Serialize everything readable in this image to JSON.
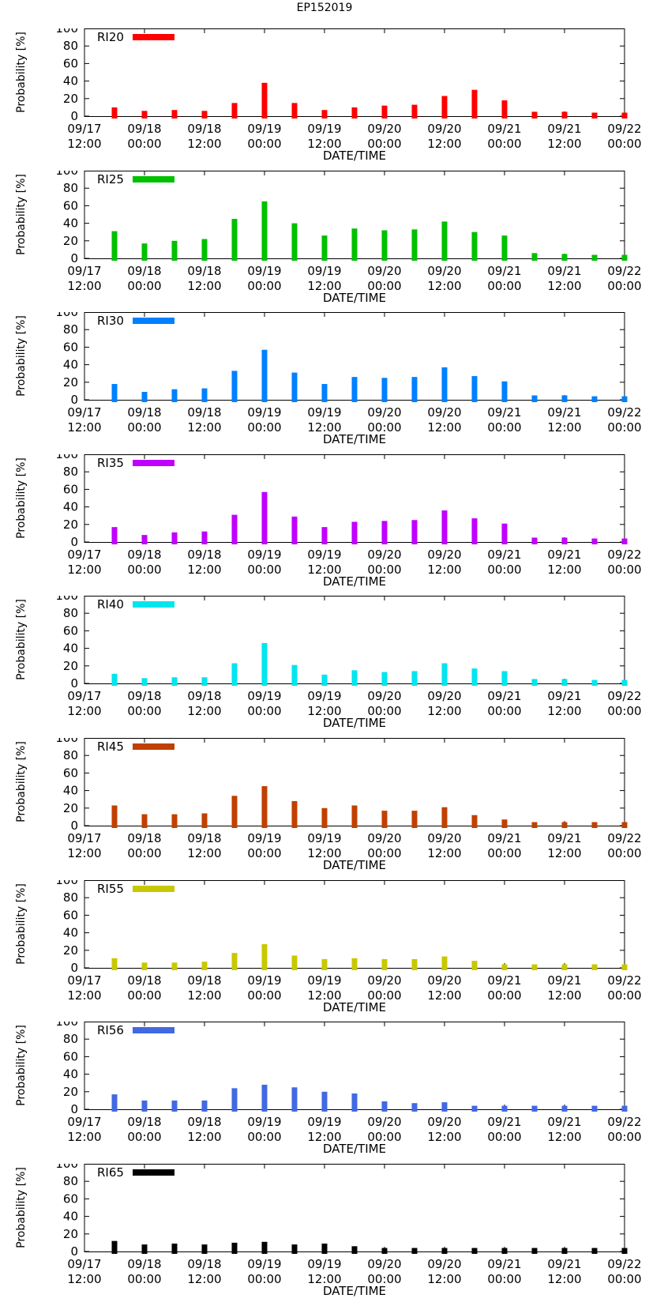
{
  "figure_title": "EP152019",
  "chart_data": [
    {
      "type": "bar",
      "title": "RI20",
      "legend": "RI20",
      "color": "#ff0000",
      "xlabel": "DATE/TIME",
      "ylabel": "Probability [%]",
      "ylim": [
        0,
        100
      ],
      "yticks": [
        "0",
        "20",
        "40",
        "60",
        "80",
        "100"
      ],
      "x_tick_labels": [
        [
          "09/17",
          "12:00"
        ],
        [
          "09/18",
          "00:00"
        ],
        [
          "09/18",
          "12:00"
        ],
        [
          "09/19",
          "00:00"
        ],
        [
          "09/19",
          "12:00"
        ],
        [
          "09/20",
          "00:00"
        ],
        [
          "09/20",
          "12:00"
        ],
        [
          "09/21",
          "00:00"
        ],
        [
          "09/21",
          "12:00"
        ],
        [
          "09/22",
          "00:00"
        ]
      ],
      "values": [
        10,
        6,
        7,
        6,
        15,
        38,
        15,
        7,
        10,
        12,
        13,
        23,
        30,
        18,
        5,
        5,
        4,
        4
      ]
    },
    {
      "type": "bar",
      "title": "RI25",
      "legend": "RI25",
      "color": "#00c000",
      "xlabel": "DATE/TIME",
      "ylabel": "Probability [%]",
      "ylim": [
        0,
        100
      ],
      "yticks": [
        "0",
        "20",
        "40",
        "60",
        "80",
        "100"
      ],
      "x_tick_labels": [
        [
          "09/17",
          "12:00"
        ],
        [
          "09/18",
          "00:00"
        ],
        [
          "09/18",
          "12:00"
        ],
        [
          "09/19",
          "00:00"
        ],
        [
          "09/19",
          "12:00"
        ],
        [
          "09/20",
          "00:00"
        ],
        [
          "09/20",
          "12:00"
        ],
        [
          "09/21",
          "00:00"
        ],
        [
          "09/21",
          "12:00"
        ],
        [
          "09/22",
          "00:00"
        ]
      ],
      "values": [
        31,
        17,
        20,
        22,
        45,
        65,
        40,
        26,
        34,
        32,
        33,
        42,
        30,
        26,
        6,
        5,
        4,
        4
      ]
    },
    {
      "type": "bar",
      "title": "RI30",
      "legend": "RI30",
      "color": "#0080ff",
      "xlabel": "DATE/TIME",
      "ylabel": "Probability [%]",
      "ylim": [
        0,
        100
      ],
      "yticks": [
        "0",
        "20",
        "40",
        "60",
        "80",
        "100"
      ],
      "x_tick_labels": [
        [
          "09/17",
          "12:00"
        ],
        [
          "09/18",
          "00:00"
        ],
        [
          "09/18",
          "12:00"
        ],
        [
          "09/19",
          "00:00"
        ],
        [
          "09/19",
          "12:00"
        ],
        [
          "09/20",
          "00:00"
        ],
        [
          "09/20",
          "12:00"
        ],
        [
          "09/21",
          "00:00"
        ],
        [
          "09/21",
          "12:00"
        ],
        [
          "09/22",
          "00:00"
        ]
      ],
      "values": [
        18,
        9,
        12,
        13,
        33,
        57,
        31,
        18,
        26,
        25,
        26,
        37,
        27,
        21,
        5,
        5,
        4,
        4
      ]
    },
    {
      "type": "bar",
      "title": "RI35",
      "legend": "RI35",
      "color": "#c000ff",
      "xlabel": "DATE/TIME",
      "ylabel": "Probability [%]",
      "ylim": [
        0,
        100
      ],
      "yticks": [
        "0",
        "20",
        "40",
        "60",
        "80",
        "100"
      ],
      "x_tick_labels": [
        [
          "09/17",
          "12:00"
        ],
        [
          "09/18",
          "00:00"
        ],
        [
          "09/18",
          "12:00"
        ],
        [
          "09/19",
          "00:00"
        ],
        [
          "09/19",
          "12:00"
        ],
        [
          "09/20",
          "00:00"
        ],
        [
          "09/20",
          "12:00"
        ],
        [
          "09/21",
          "00:00"
        ],
        [
          "09/21",
          "12:00"
        ],
        [
          "09/22",
          "00:00"
        ]
      ],
      "values": [
        17,
        8,
        11,
        12,
        31,
        57,
        29,
        17,
        23,
        24,
        25,
        36,
        27,
        21,
        5,
        5,
        4,
        4
      ]
    },
    {
      "type": "bar",
      "title": "RI40",
      "legend": "RI40",
      "color": "#00e5ee",
      "xlabel": "DATE/TIME",
      "ylabel": "Probability [%]",
      "ylim": [
        0,
        100
      ],
      "yticks": [
        "0",
        "20",
        "40",
        "60",
        "80",
        "100"
      ],
      "x_tick_labels": [
        [
          "09/17",
          "12:00"
        ],
        [
          "09/18",
          "00:00"
        ],
        [
          "09/18",
          "12:00"
        ],
        [
          "09/19",
          "00:00"
        ],
        [
          "09/19",
          "12:00"
        ],
        [
          "09/20",
          "00:00"
        ],
        [
          "09/20",
          "12:00"
        ],
        [
          "09/21",
          "00:00"
        ],
        [
          "09/21",
          "12:00"
        ],
        [
          "09/22",
          "00:00"
        ]
      ],
      "values": [
        11,
        6,
        7,
        7,
        23,
        46,
        21,
        10,
        15,
        13,
        14,
        23,
        17,
        14,
        5,
        5,
        4,
        4
      ]
    },
    {
      "type": "bar",
      "title": "RI45",
      "legend": "RI45",
      "color": "#c04000",
      "xlabel": "DATE/TIME",
      "ylabel": "Probability [%]",
      "ylim": [
        0,
        100
      ],
      "yticks": [
        "0",
        "20",
        "40",
        "60",
        "80",
        "100"
      ],
      "x_tick_labels": [
        [
          "09/17",
          "12:00"
        ],
        [
          "09/18",
          "00:00"
        ],
        [
          "09/18",
          "12:00"
        ],
        [
          "09/19",
          "00:00"
        ],
        [
          "09/19",
          "12:00"
        ],
        [
          "09/20",
          "00:00"
        ],
        [
          "09/20",
          "12:00"
        ],
        [
          "09/21",
          "00:00"
        ],
        [
          "09/21",
          "12:00"
        ],
        [
          "09/22",
          "00:00"
        ]
      ],
      "values": [
        23,
        13,
        13,
        14,
        34,
        45,
        28,
        20,
        23,
        17,
        17,
        21,
        12,
        7,
        4,
        4,
        4,
        4
      ]
    },
    {
      "type": "bar",
      "title": "RI55",
      "legend": "RI55",
      "color": "#c8c800",
      "xlabel": "DATE/TIME",
      "ylabel": "Probability [%]",
      "ylim": [
        0,
        100
      ],
      "yticks": [
        "0",
        "20",
        "40",
        "60",
        "80",
        "100"
      ],
      "x_tick_labels": [
        [
          "09/17",
          "12:00"
        ],
        [
          "09/18",
          "00:00"
        ],
        [
          "09/18",
          "12:00"
        ],
        [
          "09/19",
          "00:00"
        ],
        [
          "09/19",
          "12:00"
        ],
        [
          "09/20",
          "00:00"
        ],
        [
          "09/20",
          "12:00"
        ],
        [
          "09/21",
          "00:00"
        ],
        [
          "09/21",
          "12:00"
        ],
        [
          "09/22",
          "00:00"
        ]
      ],
      "values": [
        11,
        6,
        6,
        7,
        17,
        27,
        14,
        10,
        11,
        10,
        10,
        13,
        8,
        4,
        4,
        4,
        4,
        4
      ]
    },
    {
      "type": "bar",
      "title": "RI56",
      "legend": "RI56",
      "color": "#4169e1",
      "xlabel": "DATE/TIME",
      "ylabel": "Probability [%]",
      "ylim": [
        0,
        100
      ],
      "yticks": [
        "0",
        "20",
        "40",
        "60",
        "80",
        "100"
      ],
      "x_tick_labels": [
        [
          "09/17",
          "12:00"
        ],
        [
          "09/18",
          "00:00"
        ],
        [
          "09/18",
          "12:00"
        ],
        [
          "09/19",
          "00:00"
        ],
        [
          "09/19",
          "12:00"
        ],
        [
          "09/20",
          "00:00"
        ],
        [
          "09/20",
          "12:00"
        ],
        [
          "09/21",
          "00:00"
        ],
        [
          "09/21",
          "12:00"
        ],
        [
          "09/22",
          "00:00"
        ]
      ],
      "values": [
        17,
        10,
        10,
        10,
        24,
        28,
        25,
        20,
        18,
        9,
        7,
        8,
        4,
        4,
        4,
        4,
        4,
        4
      ]
    },
    {
      "type": "bar",
      "title": "RI65",
      "legend": "RI65",
      "color": "#000000",
      "xlabel": "DATE/TIME",
      "ylabel": "Probability [%]",
      "ylim": [
        0,
        100
      ],
      "yticks": [
        "0",
        "20",
        "40",
        "60",
        "80",
        "100"
      ],
      "x_tick_labels": [
        [
          "09/17",
          "12:00"
        ],
        [
          "09/18",
          "00:00"
        ],
        [
          "09/18",
          "12:00"
        ],
        [
          "09/19",
          "00:00"
        ],
        [
          "09/19",
          "12:00"
        ],
        [
          "09/20",
          "00:00"
        ],
        [
          "09/20",
          "12:00"
        ],
        [
          "09/21",
          "00:00"
        ],
        [
          "09/21",
          "12:00"
        ],
        [
          "09/22",
          "00:00"
        ]
      ],
      "values": [
        12,
        8,
        9,
        8,
        10,
        11,
        8,
        9,
        6,
        4,
        4,
        4,
        4,
        4,
        4,
        4,
        4,
        4
      ]
    }
  ]
}
